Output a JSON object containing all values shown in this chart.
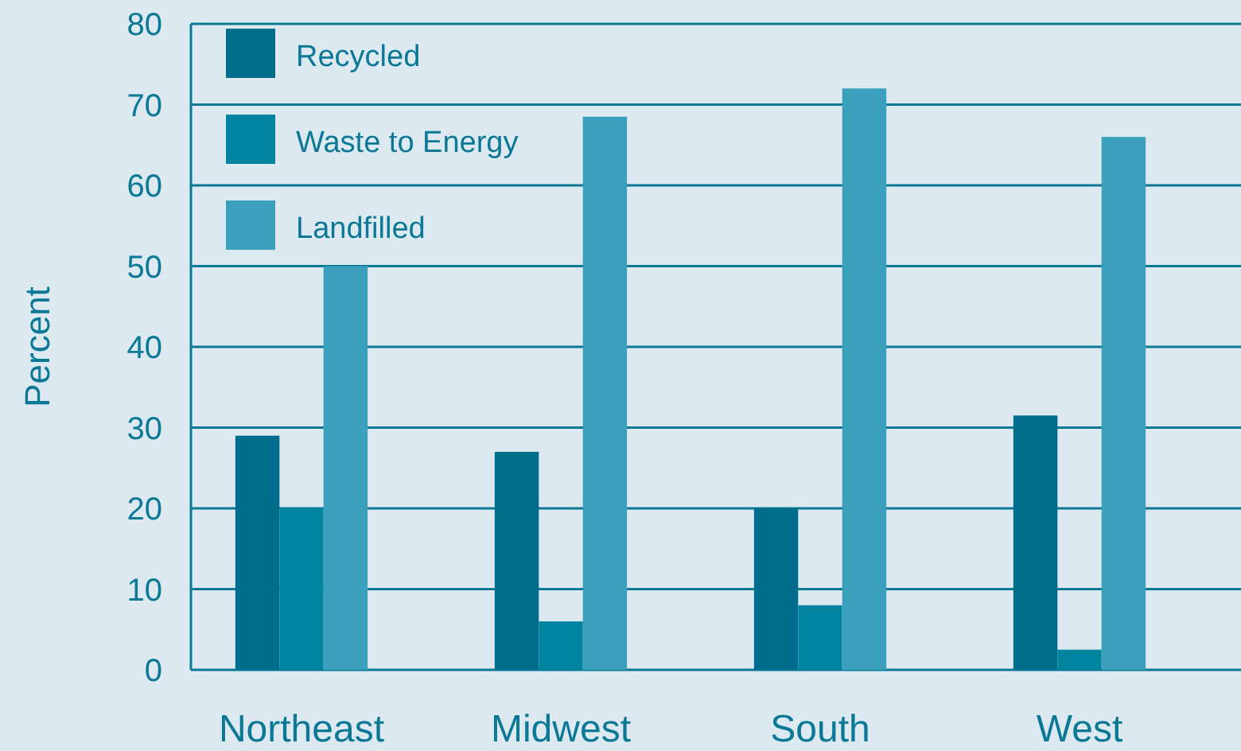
{
  "chart_data": {
    "type": "bar",
    "ylabel": "Percent",
    "categories": [
      "Northeast",
      "Midwest",
      "South",
      "West"
    ],
    "series": [
      {
        "name": "Recycled",
        "color": "#006d8c",
        "values": [
          29,
          27,
          20,
          31.5
        ]
      },
      {
        "name": "Waste to Energy",
        "color": "#00849f",
        "values": [
          20,
          6,
          8,
          2.5
        ]
      },
      {
        "name": "Landfilled",
        "color": "#3aa0bb",
        "values": [
          50,
          68.5,
          72,
          66
        ]
      }
    ],
    "ylim": [
      0,
      80
    ],
    "yticks": [
      0,
      10,
      20,
      30,
      40,
      50,
      60,
      70,
      80
    ],
    "grid": "y",
    "legend": "top left"
  }
}
